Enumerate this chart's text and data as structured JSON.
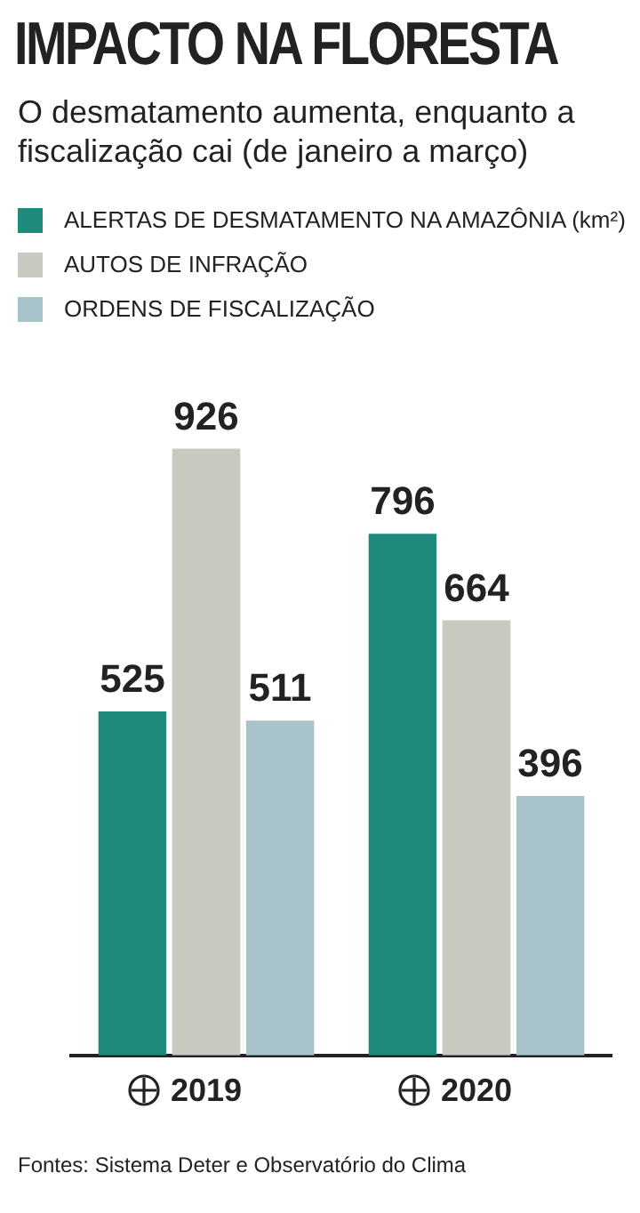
{
  "chart_data": {
    "type": "bar",
    "title": "IMPACTO NA FLORESTA",
    "subtitle": "O desmatamento aumenta, enquanto a fiscalização cai (de janeiro a março)",
    "categories": [
      "2019",
      "2020"
    ],
    "series": [
      {
        "name": "ALERTAS DE DESMATAMENTO NA AMAZÔNIA (km²)",
        "color": "#1d8a7c",
        "values": [
          525,
          796
        ]
      },
      {
        "name": "AUTOS DE INFRAÇÃO",
        "color": "#c9c9c2",
        "values": [
          926,
          664
        ]
      },
      {
        "name": "ORDENS DE FISCALIZAÇÃO",
        "color": "#a9c3cb",
        "values": [
          511,
          396
        ]
      }
    ],
    "data_labels": true,
    "legend": "top left",
    "grid": false,
    "annotations": [
      "Fontes: Sistema Deter e Observatório do Clima"
    ]
  }
}
